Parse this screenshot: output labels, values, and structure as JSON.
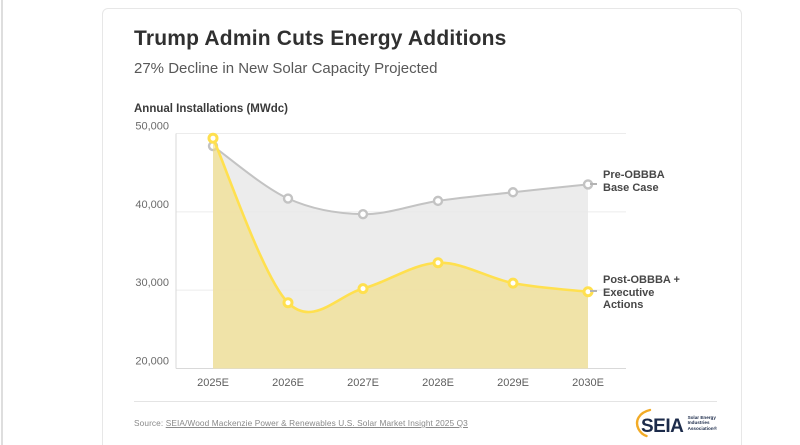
{
  "card": {
    "title": "Trump Admin Cuts Energy Additions",
    "subtitle": "27% Decline in New Solar Capacity Projected",
    "source": {
      "prefix": "Source: ",
      "link_text": "SEIA/Wood Mackenzie Power & Renewables U.S. Solar Market Insight 2025 Q3"
    },
    "logo": {
      "wordmark": "SEIA",
      "tagline_lines": [
        "Solar Energy",
        "Industries",
        "Association®"
      ],
      "navy": "#1c2b4a",
      "gold": "#f2ab26"
    }
  },
  "chart_data": {
    "type": "line",
    "title": "Trump Admin Cuts Energy Additions",
    "subtitle": "27% Decline in New Solar Capacity Projected",
    "axis_label": "Annual Installations (MWdc)",
    "categories": [
      "2025E",
      "2026E",
      "2027E",
      "2028E",
      "2029E",
      "2030E"
    ],
    "series": [
      {
        "name": "Pre-OBBBA Base Case",
        "label_lines": [
          "Pre-OBBBA",
          "Base Case"
        ],
        "values": [
          48400,
          41700,
          39700,
          41400,
          42500,
          43500
        ],
        "line_color": "#c3c3c3",
        "fill_color": "#e9e9e9",
        "fill_opacity": 0.85,
        "marker": "open-circle",
        "line_width": 2
      },
      {
        "name": "Post-OBBBA + Executive Actions",
        "label_lines": [
          "Post-OBBBA +",
          "Executive",
          "Actions"
        ],
        "values": [
          49400,
          28400,
          30200,
          33500,
          30900,
          29800
        ],
        "line_color": "#ffe04f",
        "fill_color": "#f2dd7e",
        "fill_opacity": 0.62,
        "marker": "open-circle",
        "line_width": 2.6
      }
    ],
    "y_ticks": [
      50000,
      40000,
      30000,
      20000
    ],
    "ylim": [
      20000,
      50000
    ],
    "grid": true,
    "smooth": true,
    "legend_position": "right-of-line-end",
    "tick_color": "#6b6b6b",
    "grid_color": "#ececec",
    "axis_color": "#d9d9d9"
  }
}
